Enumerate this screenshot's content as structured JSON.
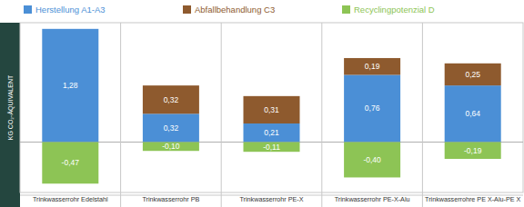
{
  "chart_data": {
    "type": "bar",
    "stacked": true,
    "data_labels": true,
    "tick_labels": false,
    "grid": true,
    "legend": "top",
    "ylabel": "KG CO₂-ÄQUIVALENT",
    "categories": [
      "Trinkwasserrohr Edelstahl",
      "Trinkwasserrohr PB",
      "Trinkwasserrohr PE-X",
      "Trinkwasserrohr PE-X-Alu",
      "Trinkwasserrohre PE X-Alu-PE X"
    ],
    "ylim": [
      -0.57,
      1.35
    ],
    "yticks": [
      0
    ],
    "series": [
      {
        "name": "Herstellung A1-A3",
        "color": "#4b8fd6",
        "values": [
          1.28,
          0.32,
          0.21,
          0.76,
          0.64
        ],
        "value_labels": [
          "1,28",
          "0,32",
          "0,21",
          "0,76",
          "0,64"
        ]
      },
      {
        "name": "Abfallbehandlung C3",
        "color": "#8e5a2e",
        "values": [
          null,
          0.32,
          0.31,
          0.19,
          0.25
        ],
        "value_labels": [
          null,
          "0,32",
          "0,31",
          "0,19",
          "0,25"
        ]
      },
      {
        "name": "Recyclingpotenzial D",
        "color": "#8dc455",
        "values": [
          -0.47,
          -0.1,
          -0.11,
          -0.4,
          -0.19
        ],
        "value_labels": [
          "-0,47",
          "-0,10",
          "-0,11",
          "-0,40",
          "-0,19"
        ]
      }
    ]
  }
}
